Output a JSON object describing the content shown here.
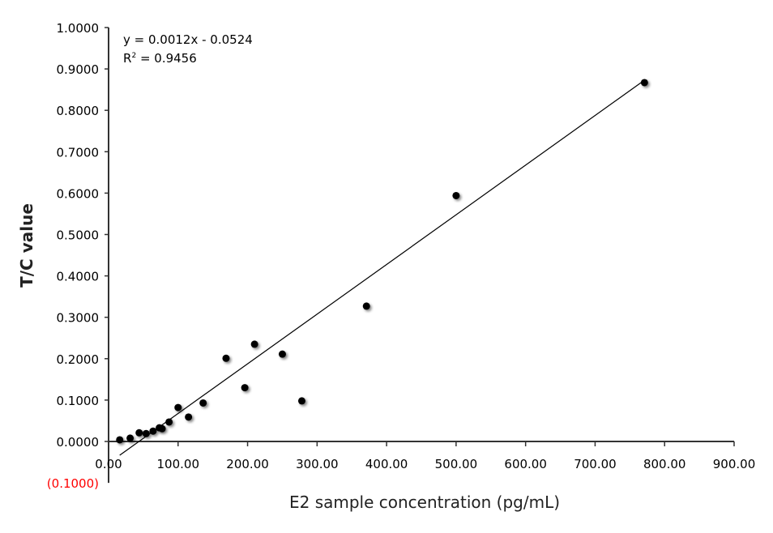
{
  "chart_data": {
    "type": "scatter",
    "title": "",
    "xlabel": "E2  sample concentration (pg/mL)",
    "ylabel": "T/C value",
    "xlim": [
      0,
      900
    ],
    "ylim": [
      -0.1,
      1.0
    ],
    "x_ticks": [
      "0.00",
      "100.00",
      "200.00",
      "300.00",
      "400.00",
      "500.00",
      "600.00",
      "700.00",
      "800.00",
      "900.00"
    ],
    "y_ticks": [
      "(0.1000)",
      "0.0000",
      "0.1000",
      "0.2000",
      "0.3000",
      "0.4000",
      "0.5000",
      "0.6000",
      "0.7000",
      "0.8000",
      "0.9000",
      "1.0000"
    ],
    "negative_tick_color": "#ff0000",
    "grid": false,
    "legend": "none",
    "point_color": "#000000",
    "points": [
      [
        16,
        0.004
      ],
      [
        31,
        0.008
      ],
      [
        44,
        0.021
      ],
      [
        54,
        0.019
      ],
      [
        64,
        0.025
      ],
      [
        73,
        0.033
      ],
      [
        77,
        0.031
      ],
      [
        87,
        0.047
      ],
      [
        100,
        0.082
      ],
      [
        115,
        0.059
      ],
      [
        136,
        0.093
      ],
      [
        169,
        0.201
      ],
      [
        196,
        0.13
      ],
      [
        210,
        0.235
      ],
      [
        250,
        0.211
      ],
      [
        278,
        0.098
      ],
      [
        371,
        0.327
      ],
      [
        500,
        0.594
      ],
      [
        771,
        0.867
      ]
    ],
    "trendline": {
      "type": "linear",
      "slope": 0.0012,
      "intercept": -0.0524,
      "x_range": [
        16,
        771
      ],
      "equation": "y = 0.0012x - 0.0524",
      "r2_label": "R",
      "r2_sup": "2",
      "r2_value": " = 0.9456"
    }
  }
}
